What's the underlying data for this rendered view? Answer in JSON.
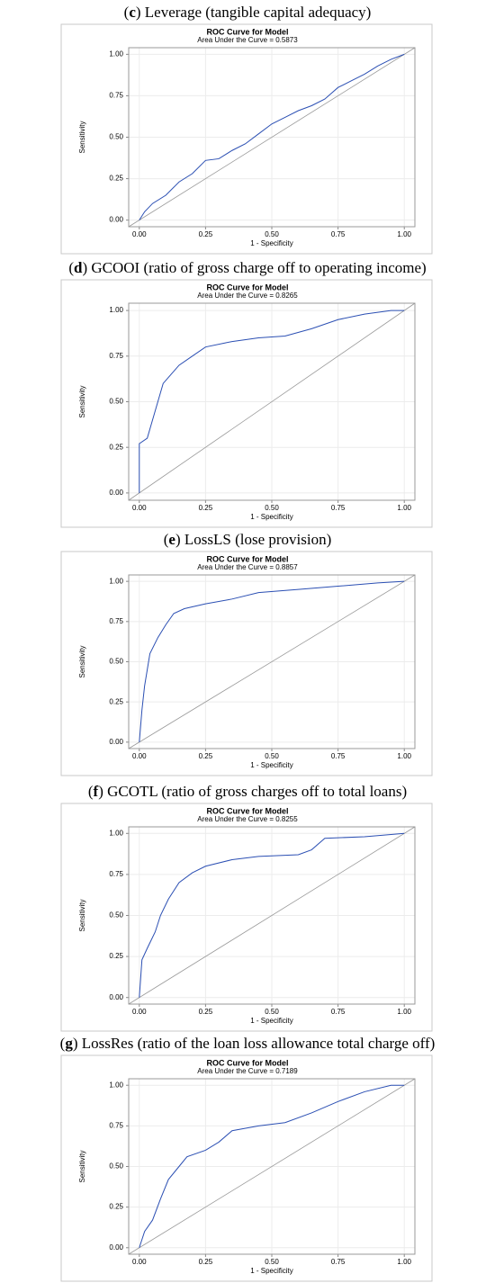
{
  "chart_data": [
    {
      "type": "line",
      "caption": "(c) Leverage (tangible capital adequacy)",
      "title": "ROC Curve for Model",
      "subtitle": "Area Under the Curve = 0.5873",
      "xlabel": "1 - Specificity",
      "ylabel": "Sensitivity",
      "x": [
        0,
        0.02,
        0.05,
        0.1,
        0.15,
        0.2,
        0.25,
        0.3,
        0.35,
        0.4,
        0.45,
        0.5,
        0.55,
        0.6,
        0.65,
        0.7,
        0.75,
        0.8,
        0.85,
        0.9,
        0.95,
        1
      ],
      "y": [
        0,
        0.05,
        0.1,
        0.15,
        0.23,
        0.28,
        0.36,
        0.37,
        0.42,
        0.46,
        0.52,
        0.58,
        0.62,
        0.66,
        0.69,
        0.73,
        0.8,
        0.84,
        0.88,
        0.93,
        0.97,
        1
      ],
      "color": "#2b4fb3",
      "reference_color": "#999999",
      "grid": true,
      "xlim": [
        -0.04,
        1.04
      ],
      "ylim": [
        -0.04,
        1.04
      ],
      "xticks": [
        {
          "value": 0,
          "label": "0.00"
        },
        {
          "value": 0.25,
          "label": "0.25"
        },
        {
          "value": 0.5,
          "label": "0.50"
        },
        {
          "value": 0.75,
          "label": "0.75"
        },
        {
          "value": 1,
          "label": "1.00"
        }
      ],
      "yticks": [
        {
          "value": 0,
          "label": "0.00"
        },
        {
          "value": 0.25,
          "label": "0.25"
        },
        {
          "value": 0.5,
          "label": "0.50"
        },
        {
          "value": 0.75,
          "label": "0.75"
        },
        {
          "value": 1,
          "label": "1.00"
        }
      ]
    },
    {
      "type": "line",
      "caption": "(d) GCOOI (ratio of gross charge off to operating income)",
      "title": "ROC Curve for Model",
      "subtitle": "Area Under the Curve = 0.8265",
      "xlabel": "1 - Specificity",
      "ylabel": "Sensitivity",
      "x": [
        0,
        0,
        0.03,
        0.05,
        0.07,
        0.09,
        0.12,
        0.15,
        0.2,
        0.25,
        0.35,
        0.45,
        0.55,
        0.65,
        0.75,
        0.85,
        0.95,
        1
      ],
      "y": [
        0,
        0.27,
        0.3,
        0.4,
        0.5,
        0.6,
        0.65,
        0.7,
        0.75,
        0.8,
        0.83,
        0.85,
        0.86,
        0.9,
        0.95,
        0.98,
        1,
        1
      ],
      "color": "#2b4fb3",
      "reference_color": "#999999",
      "grid": true,
      "xlim": [
        -0.04,
        1.04
      ],
      "ylim": [
        -0.04,
        1.04
      ],
      "xticks": [
        {
          "value": 0,
          "label": "0.00"
        },
        {
          "value": 0.25,
          "label": "0.25"
        },
        {
          "value": 0.5,
          "label": "0.50"
        },
        {
          "value": 0.75,
          "label": "0.75"
        },
        {
          "value": 1,
          "label": "1.00"
        }
      ],
      "yticks": [
        {
          "value": 0,
          "label": "0.00"
        },
        {
          "value": 0.25,
          "label": "0.25"
        },
        {
          "value": 0.5,
          "label": "0.50"
        },
        {
          "value": 0.75,
          "label": "0.75"
        },
        {
          "value": 1,
          "label": "1.00"
        }
      ]
    },
    {
      "type": "line",
      "caption": "(e) LossLS (lose provision)",
      "title": "ROC Curve for Model",
      "subtitle": "Area Under the Curve = 0.8857",
      "xlabel": "1 - Specificity",
      "ylabel": "Sensitivity",
      "x": [
        0,
        0.01,
        0.02,
        0.04,
        0.07,
        0.1,
        0.13,
        0.17,
        0.25,
        0.35,
        0.45,
        0.6,
        0.75,
        0.9,
        1
      ],
      "y": [
        0,
        0.2,
        0.35,
        0.55,
        0.65,
        0.73,
        0.8,
        0.83,
        0.86,
        0.89,
        0.93,
        0.95,
        0.97,
        0.99,
        1
      ],
      "color": "#2b4fb3",
      "reference_color": "#999999",
      "grid": true,
      "xlim": [
        -0.04,
        1.04
      ],
      "ylim": [
        -0.04,
        1.04
      ],
      "xticks": [
        {
          "value": 0,
          "label": "0.00"
        },
        {
          "value": 0.25,
          "label": "0.25"
        },
        {
          "value": 0.5,
          "label": "0.50"
        },
        {
          "value": 0.75,
          "label": "0.75"
        },
        {
          "value": 1,
          "label": "1.00"
        }
      ],
      "yticks": [
        {
          "value": 0,
          "label": "0.00"
        },
        {
          "value": 0.25,
          "label": "0.25"
        },
        {
          "value": 0.5,
          "label": "0.50"
        },
        {
          "value": 0.75,
          "label": "0.75"
        },
        {
          "value": 1,
          "label": "1.00"
        }
      ]
    },
    {
      "type": "line",
      "caption": "(f) GCOTL (ratio of gross charges off to total loans)",
      "title": "ROC Curve for Model",
      "subtitle": "Area Under the Curve = 0.8255",
      "xlabel": "1 - Specificity",
      "ylabel": "Sensitivity",
      "x": [
        0,
        0.01,
        0.03,
        0.06,
        0.08,
        0.11,
        0.15,
        0.2,
        0.25,
        0.35,
        0.45,
        0.6,
        0.65,
        0.7,
        0.85,
        1
      ],
      "y": [
        0,
        0.23,
        0.3,
        0.4,
        0.5,
        0.6,
        0.7,
        0.76,
        0.8,
        0.84,
        0.86,
        0.87,
        0.9,
        0.97,
        0.98,
        1
      ],
      "color": "#2b4fb3",
      "reference_color": "#999999",
      "grid": true,
      "xlim": [
        -0.04,
        1.04
      ],
      "ylim": [
        -0.04,
        1.04
      ],
      "xticks": [
        {
          "value": 0,
          "label": "0.00"
        },
        {
          "value": 0.25,
          "label": "0.25"
        },
        {
          "value": 0.5,
          "label": "0.50"
        },
        {
          "value": 0.75,
          "label": "0.75"
        },
        {
          "value": 1,
          "label": "1.00"
        }
      ],
      "yticks": [
        {
          "value": 0,
          "label": "0.00"
        },
        {
          "value": 0.25,
          "label": "0.25"
        },
        {
          "value": 0.5,
          "label": "0.50"
        },
        {
          "value": 0.75,
          "label": "0.75"
        },
        {
          "value": 1,
          "label": "1.00"
        }
      ]
    },
    {
      "type": "line",
      "caption": "(g) LossRes (ratio of the loan loss allowance total charge off)",
      "title": "ROC Curve for Model",
      "subtitle": "Area Under the Curve = 0.7189",
      "xlabel": "1 - Specificity",
      "ylabel": "Sensitivity",
      "x": [
        0,
        0.02,
        0.05,
        0.08,
        0.11,
        0.15,
        0.18,
        0.25,
        0.3,
        0.35,
        0.45,
        0.55,
        0.65,
        0.75,
        0.85,
        0.95,
        1
      ],
      "y": [
        0,
        0.1,
        0.17,
        0.3,
        0.42,
        0.5,
        0.56,
        0.6,
        0.65,
        0.72,
        0.75,
        0.77,
        0.83,
        0.9,
        0.96,
        1,
        1
      ],
      "color": "#2b4fb3",
      "reference_color": "#999999",
      "grid": true,
      "xlim": [
        -0.04,
        1.04
      ],
      "ylim": [
        -0.04,
        1.04
      ],
      "xticks": [
        {
          "value": 0,
          "label": "0.00"
        },
        {
          "value": 0.25,
          "label": "0.25"
        },
        {
          "value": 0.5,
          "label": "0.50"
        },
        {
          "value": 0.75,
          "label": "0.75"
        },
        {
          "value": 1,
          "label": "1.00"
        }
      ],
      "yticks": [
        {
          "value": 0,
          "label": "0.00"
        },
        {
          "value": 0.25,
          "label": "0.25"
        },
        {
          "value": 0.5,
          "label": "0.50"
        },
        {
          "value": 0.75,
          "label": "0.75"
        },
        {
          "value": 1,
          "label": "1.00"
        }
      ]
    }
  ]
}
